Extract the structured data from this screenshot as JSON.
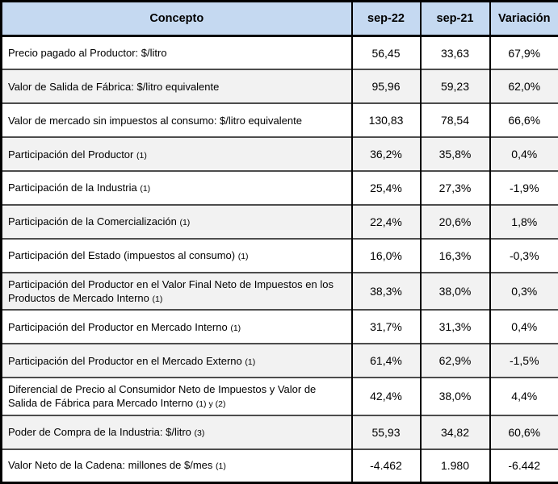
{
  "chart_data": {
    "type": "table",
    "title": "",
    "columns": [
      "Concepto",
      "sep-22",
      "sep-21",
      "Variación"
    ],
    "rows": [
      {
        "concepto": "Precio pagado al Productor: $/litro",
        "fn": "",
        "sep22": "56,45",
        "sep21": "33,63",
        "variacion": "67,9%"
      },
      {
        "concepto": "Valor de Salida de Fábrica: $/litro equivalente",
        "fn": "",
        "sep22": "95,96",
        "sep21": "59,23",
        "variacion": "62,0%"
      },
      {
        "concepto": "Valor de mercado sin impuestos al consumo: $/litro equivalente",
        "fn": "",
        "sep22": "130,83",
        "sep21": "78,54",
        "variacion": "66,6%"
      },
      {
        "concepto": "Participación del Productor",
        "fn": "(1)",
        "sep22": "36,2%",
        "sep21": "35,8%",
        "variacion": "0,4%"
      },
      {
        "concepto": "Participación de la Industria",
        "fn": "(1)",
        "sep22": "25,4%",
        "sep21": "27,3%",
        "variacion": "-1,9%"
      },
      {
        "concepto": "Participación de la Comercialización",
        "fn": "(1)",
        "sep22": "22,4%",
        "sep21": "20,6%",
        "variacion": "1,8%"
      },
      {
        "concepto": "Participación del Estado (impuestos al consumo)",
        "fn": "(1)",
        "sep22": "16,0%",
        "sep21": "16,3%",
        "variacion": "-0,3%"
      },
      {
        "concepto": "Participación del Productor en el Valor Final Neto de Impuestos en los Productos de Mercado Interno",
        "fn": "(1)",
        "sep22": "38,3%",
        "sep21": "38,0%",
        "variacion": "0,3%"
      },
      {
        "concepto": "Participación del Productor en Mercado Interno",
        "fn": "(1)",
        "sep22": "31,7%",
        "sep21": "31,3%",
        "variacion": "0,4%"
      },
      {
        "concepto": "Participación del Productor en el Mercado Externo",
        "fn": "(1)",
        "sep22": "61,4%",
        "sep21": "62,9%",
        "variacion": "-1,5%"
      },
      {
        "concepto": "Diferencial de Precio al Consumidor Neto de Impuestos y Valor de Salida de Fábrica para Mercado Interno",
        "fn": "(1) y (2)",
        "sep22": "42,4%",
        "sep21": "38,0%",
        "variacion": "4,4%"
      },
      {
        "concepto": "Poder de Compra de la Industria: $/litro",
        "fn": "(3)",
        "sep22": "55,93",
        "sep21": "34,82",
        "variacion": "60,6%"
      },
      {
        "concepto": "Valor Neto de la Cadena: millones de $/mes",
        "fn": "(1)",
        "sep22": "-4.462",
        "sep21": "1.980",
        "variacion": "-6.442"
      }
    ]
  },
  "colors": {
    "header_bg": "#c5d9f1",
    "row_alt_bg": "#f2f2f2",
    "outer_border": "#000000",
    "row_separator": "#4d4d4d"
  }
}
